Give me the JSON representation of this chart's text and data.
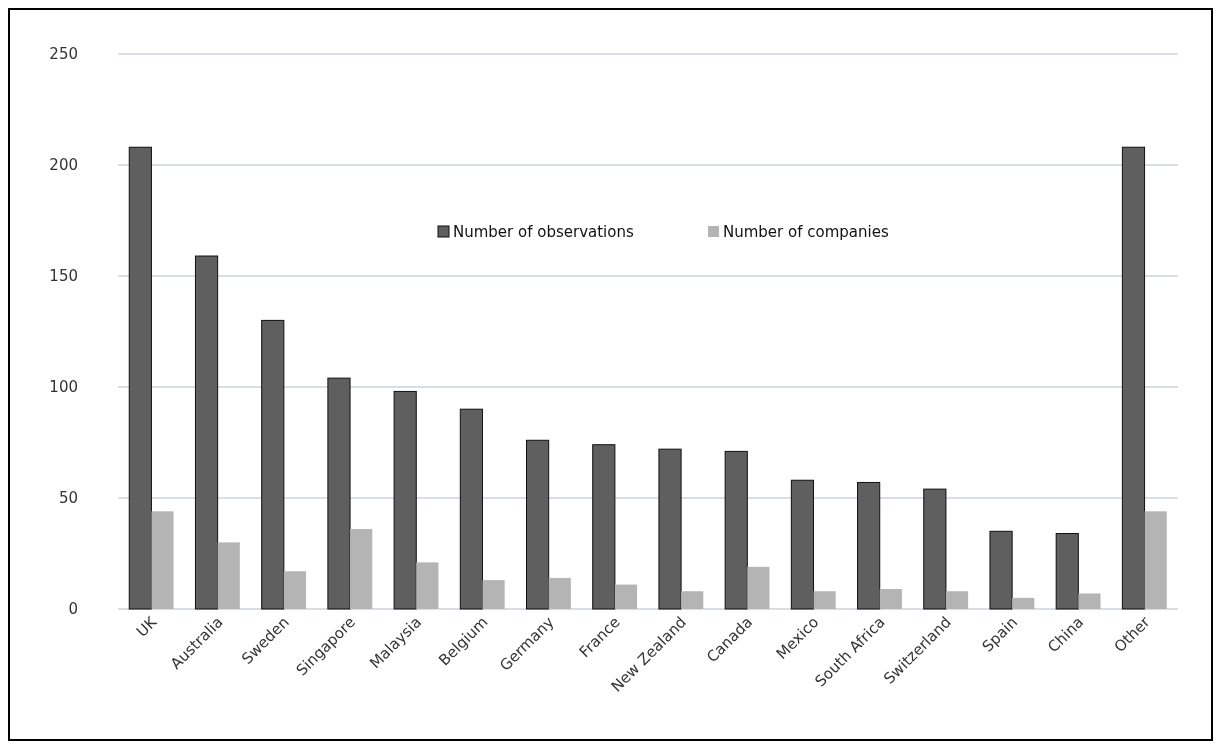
{
  "chart_data": {
    "type": "bar",
    "categories": [
      "UK",
      "Australia",
      "Sweden",
      "Singapore",
      "Malaysia",
      "Belgium",
      "Germany",
      "France",
      "New Zealand",
      "Canada",
      "Mexico",
      "South Africa",
      "Switzerland",
      "Spain",
      "China",
      "Other"
    ],
    "series": [
      {
        "name": "Number of observations",
        "color": "#5f5f5f",
        "values": [
          208,
          159,
          130,
          104,
          98,
          90,
          76,
          74,
          72,
          71,
          58,
          57,
          54,
          35,
          34,
          208
        ]
      },
      {
        "name": "Number of companies",
        "color": "#b4b4b4",
        "values": [
          44,
          30,
          17,
          36,
          21,
          13,
          14,
          11,
          8,
          19,
          8,
          9,
          8,
          5,
          7,
          44
        ]
      }
    ],
    "ylim": [
      0,
      250
    ],
    "yticks": [
      0,
      50,
      100,
      150,
      200,
      250
    ],
    "grid": "y",
    "legend": "top"
  }
}
